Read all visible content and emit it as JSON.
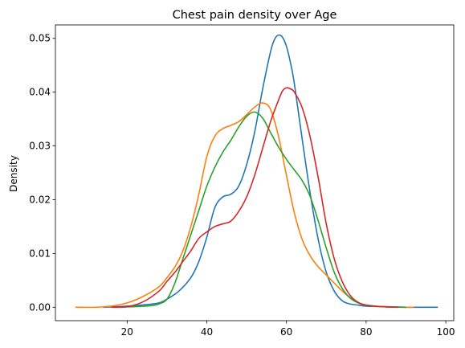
{
  "chart_data": {
    "type": "line",
    "title": "Chest pain density over Age",
    "xlabel": "",
    "ylabel": "Density",
    "xlim": [
      2,
      102
    ],
    "ylim": [
      -0.0025,
      0.0525
    ],
    "grid": false,
    "legend": "none",
    "xticks": [
      20,
      40,
      60,
      80,
      100
    ],
    "xtick_labels": [
      "20",
      "40",
      "60",
      "80",
      "100"
    ],
    "yticks": [
      0.0,
      0.01,
      0.02,
      0.03,
      0.04,
      0.05
    ],
    "ytick_labels": [
      "0.00",
      "0.01",
      "0.02",
      "0.03",
      "0.04",
      "0.05"
    ],
    "series": [
      {
        "color": "#1f77b4",
        "x": [
          14,
          20,
          25,
          28,
          30,
          33,
          36,
          38,
          40,
          42,
          44,
          46,
          48,
          50,
          52,
          54,
          56,
          57,
          58,
          59,
          60,
          61,
          62,
          64,
          66,
          68,
          70,
          72,
          74,
          76,
          78,
          80,
          85,
          90,
          98
        ],
        "y": [
          0,
          0.0002,
          0.0005,
          0.0008,
          0.0015,
          0.003,
          0.0055,
          0.0085,
          0.013,
          0.0185,
          0.0205,
          0.021,
          0.0225,
          0.0265,
          0.0325,
          0.0405,
          0.0475,
          0.0498,
          0.0506,
          0.0502,
          0.0485,
          0.0455,
          0.0415,
          0.031,
          0.021,
          0.0125,
          0.0065,
          0.003,
          0.0012,
          0.0006,
          0.0004,
          0.0002,
          0.0001,
          0,
          0
        ]
      },
      {
        "color": "#ff7f0e",
        "x": [
          7,
          12,
          16,
          20,
          24,
          28,
          30,
          32,
          34,
          36,
          38,
          40,
          42,
          44,
          46,
          48,
          50,
          52,
          54,
          56,
          58,
          60,
          62,
          64,
          66,
          68,
          70,
          72,
          74,
          76,
          78,
          80,
          84,
          88,
          92
        ],
        "y": [
          0,
          0,
          0.0002,
          0.0008,
          0.002,
          0.0038,
          0.0055,
          0.0075,
          0.0105,
          0.015,
          0.021,
          0.028,
          0.0318,
          0.0332,
          0.0338,
          0.0345,
          0.0358,
          0.0372,
          0.038,
          0.0368,
          0.0318,
          0.0245,
          0.0175,
          0.0125,
          0.0095,
          0.0075,
          0.006,
          0.0045,
          0.003,
          0.0018,
          0.0009,
          0.0004,
          0.0001,
          0,
          0
        ]
      },
      {
        "color": "#2ca02c",
        "x": [
          18,
          22,
          26,
          28,
          30,
          32,
          34,
          36,
          38,
          40,
          42,
          44,
          46,
          48,
          50,
          52,
          54,
          56,
          58,
          60,
          62,
          64,
          66,
          68,
          70,
          72,
          74,
          76,
          78,
          80,
          84,
          90
        ],
        "y": [
          0,
          0.0001,
          0.0003,
          0.0006,
          0.0015,
          0.0045,
          0.009,
          0.0135,
          0.018,
          0.0225,
          0.026,
          0.0288,
          0.031,
          0.0335,
          0.0355,
          0.0363,
          0.0352,
          0.0325,
          0.0298,
          0.0275,
          0.0255,
          0.0235,
          0.0205,
          0.016,
          0.011,
          0.0065,
          0.0035,
          0.0017,
          0.0008,
          0.0004,
          0.0001,
          0
        ]
      },
      {
        "color": "#d62728",
        "x": [
          16,
          20,
          24,
          28,
          30,
          32,
          34,
          36,
          38,
          40,
          42,
          44,
          46,
          48,
          50,
          52,
          54,
          56,
          58,
          59,
          60,
          61,
          62,
          64,
          66,
          68,
          70,
          72,
          74,
          76,
          78,
          80,
          84,
          88
        ],
        "y": [
          0,
          0.0001,
          0.001,
          0.003,
          0.0048,
          0.0065,
          0.0085,
          0.0105,
          0.0128,
          0.014,
          0.015,
          0.0155,
          0.016,
          0.0178,
          0.0205,
          0.0245,
          0.0295,
          0.0345,
          0.0385,
          0.0402,
          0.0408,
          0.0406,
          0.04,
          0.037,
          0.0315,
          0.024,
          0.0155,
          0.009,
          0.0048,
          0.0022,
          0.0009,
          0.0004,
          0.0001,
          0
        ]
      }
    ]
  }
}
